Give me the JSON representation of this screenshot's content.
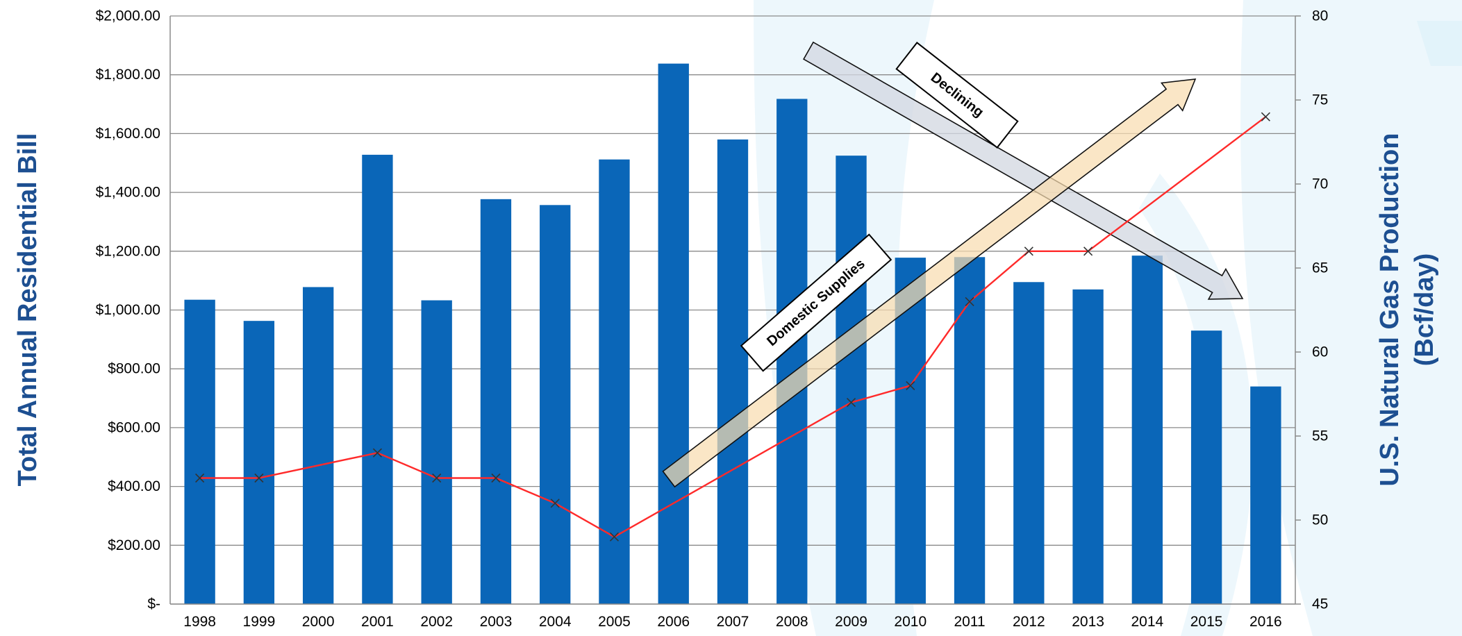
{
  "chart_data": {
    "type": "bar",
    "categories": [
      "1998",
      "1999",
      "2000",
      "2001",
      "2002",
      "2003",
      "2004",
      "2005",
      "2006",
      "2007",
      "2008",
      "2009",
      "2010",
      "2011",
      "2012",
      "2013",
      "2014",
      "2015",
      "2016"
    ],
    "series": [
      {
        "type": "bar",
        "axis": "left",
        "color": "#0a66b8",
        "values": [
          1035,
          963,
          1078,
          1528,
          1033,
          1377,
          1357,
          1512,
          1838,
          1580,
          1718,
          1525,
          1178,
          1180,
          1095,
          1070,
          1185,
          930,
          740
        ]
      },
      {
        "type": "line",
        "axis": "right",
        "color": "#ff2a2a",
        "marker": "x",
        "values": [
          52.5,
          52.5,
          null,
          54,
          52.5,
          52.5,
          51,
          49,
          null,
          null,
          null,
          57,
          58,
          63,
          66,
          66,
          null,
          null,
          74
        ]
      }
    ],
    "ylabel": "Total Annual Residential Bill",
    "y2label_line1": "U.S. Natural Gas Production",
    "y2label_line2": "(Bcf/day)",
    "ylim": [
      0,
      2000
    ],
    "y2lim": [
      45,
      80
    ],
    "yticks": [
      "$-",
      "$200.00",
      "$400.00",
      "$600.00",
      "$800.00",
      "$1,000.00",
      "$1,200.00",
      "$1,400.00",
      "$1,600.00",
      "$1,800.00",
      "$2,000.00"
    ],
    "y2ticks": [
      "45",
      "50",
      "55",
      "60",
      "65",
      "70",
      "75",
      "80"
    ],
    "grid": true,
    "annotations": [
      {
        "text": "Declining",
        "arrow": "down-right"
      },
      {
        "text": "Domestic Supplies",
        "arrow": "up-right"
      }
    ]
  }
}
